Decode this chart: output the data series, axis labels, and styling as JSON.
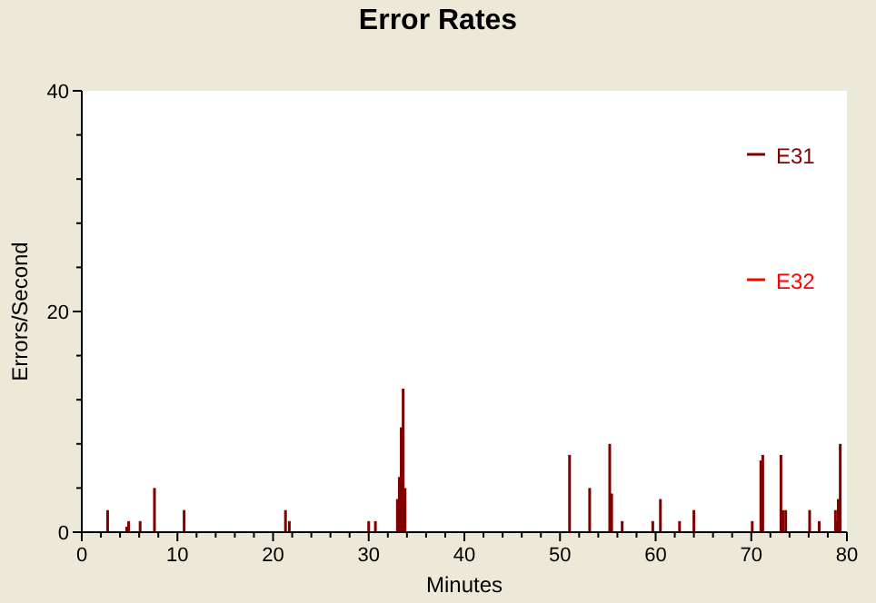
{
  "chart_data": {
    "type": "bar",
    "title": "Error Rates",
    "xlabel": "Minutes",
    "ylabel": "Errors/Second",
    "x": [
      2.7,
      4.7,
      4.9,
      6.1,
      7.6,
      10.7,
      21.3,
      21.7,
      30.0,
      30.7,
      33.0,
      33.2,
      33.4,
      33.6,
      33.8,
      51.0,
      53.1,
      55.2,
      55.4,
      56.5,
      59.7,
      60.5,
      62.5,
      64.0,
      70.1,
      71.0,
      71.2,
      73.1,
      73.3,
      73.6,
      76.1,
      77.1,
      78.8,
      78.9,
      79.1,
      79.3
    ],
    "series": [
      {
        "name": "E31",
        "color": "#800000",
        "values": [
          2,
          0.5,
          1,
          1,
          4,
          2,
          2,
          1,
          1,
          1,
          3,
          5,
          9.5,
          13,
          4,
          7,
          4,
          8,
          3.5,
          1,
          1,
          3,
          1,
          2,
          1,
          6.5,
          7,
          7,
          2,
          2,
          2,
          1,
          2,
          1,
          3,
          8
        ]
      },
      {
        "name": "E32",
        "color": "#ff0000",
        "values": [
          0,
          0,
          0,
          0,
          0,
          0,
          0,
          0,
          0,
          0,
          0,
          0,
          0,
          0,
          0,
          0,
          0,
          0,
          0,
          0,
          0,
          0,
          0,
          0,
          0,
          0,
          0,
          0,
          0,
          0,
          0,
          0,
          0,
          0,
          0,
          0
        ]
      }
    ],
    "xlim": [
      0,
      80
    ],
    "ylim": [
      0,
      40
    ],
    "xticks": [
      0,
      {
        "value": 2,
        "label": null
      },
      {
        "value": 4,
        "label": null
      },
      {
        "value": 6,
        "label": null
      },
      {
        "value": 8,
        "label": null
      },
      10,
      {
        "value": 12,
        "label": null
      },
      {
        "value": 14,
        "label": null
      },
      {
        "value": 16,
        "label": null
      },
      {
        "value": 18,
        "label": null
      },
      20,
      {
        "value": 22,
        "label": null
      },
      {
        "value": 24,
        "label": null
      },
      {
        "value": 26,
        "label": null
      },
      {
        "value": 28,
        "label": null
      },
      30,
      {
        "value": 32,
        "label": null
      },
      {
        "value": 34,
        "label": null
      },
      {
        "value": 36,
        "label": null
      },
      {
        "value": 38,
        "label": null
      },
      40,
      {
        "value": 42,
        "label": null
      },
      {
        "value": 44,
        "label": null
      },
      {
        "value": 46,
        "label": null
      },
      {
        "value": 48,
        "label": null
      },
      50,
      {
        "value": 52,
        "label": null
      },
      {
        "value": 54,
        "label": null
      },
      {
        "value": 56,
        "label": null
      },
      {
        "value": 58,
        "label": null
      },
      60,
      {
        "value": 62,
        "label": null
      },
      {
        "value": 64,
        "label": null
      },
      {
        "value": 66,
        "label": null
      },
      {
        "value": 68,
        "label": null
      },
      70,
      {
        "value": 72,
        "label": null
      },
      {
        "value": 74,
        "label": null
      },
      {
        "value": 76,
        "label": null
      },
      {
        "value": 78,
        "label": null
      },
      80
    ],
    "yticks": [
      0,
      {
        "value": 4,
        "label": null
      },
      {
        "value": 8,
        "label": null
      },
      {
        "value": 12,
        "label": null
      },
      {
        "value": 16,
        "label": null
      },
      20,
      {
        "value": 24,
        "label": null
      },
      {
        "value": 28,
        "label": null
      },
      {
        "value": 32,
        "label": null
      },
      {
        "value": 36,
        "label": null
      },
      40
    ],
    "grid": false,
    "legend": "top right"
  }
}
